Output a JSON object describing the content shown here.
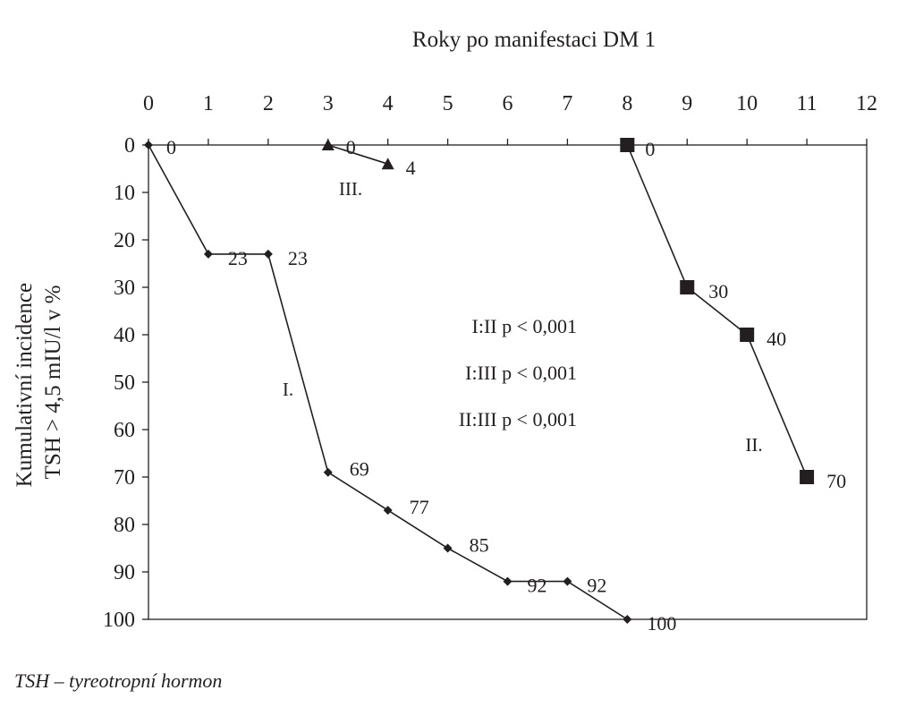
{
  "footnote": "TSH – tyreotropní hormon",
  "chart_data": {
    "type": "line",
    "xlabel": "Roky po manifestaci DM 1",
    "ylabel_lines": [
      "Kumulativní incidence",
      "TSH > 4,5 mIU/l v %"
    ],
    "xlim": [
      0,
      12
    ],
    "ylim": [
      0,
      100
    ],
    "y_inverted": true,
    "x_axis_position": "top",
    "grid": false,
    "x_ticks": [
      "0",
      "1",
      "2",
      "3",
      "4",
      "5",
      "6",
      "7",
      "8",
      "9",
      "10",
      "11",
      "12"
    ],
    "y_ticks": [
      "0",
      "10",
      "20",
      "30",
      "40",
      "50",
      "60",
      "70",
      "80",
      "90",
      "100"
    ],
    "annotations": [
      "I:II p < 0,001",
      "I:III p < 0,001",
      "II:III p < 0,001"
    ],
    "series": [
      {
        "name": "I.",
        "marker": "diamond",
        "x": [
          0,
          1,
          2,
          3,
          4,
          5,
          6,
          7,
          8
        ],
        "y": [
          0,
          23,
          23,
          69,
          77,
          85,
          92,
          92,
          100
        ],
        "labels": [
          "0",
          "23",
          "23",
          "69",
          "77",
          "85",
          "92",
          "92",
          "100"
        ]
      },
      {
        "name": "II.",
        "marker": "square",
        "x": [
          8,
          9,
          10,
          11
        ],
        "y": [
          0,
          30,
          40,
          70
        ],
        "labels": [
          "0",
          "30",
          "40",
          "70"
        ]
      },
      {
        "name": "III.",
        "marker": "triangle",
        "x": [
          3,
          4
        ],
        "y": [
          0,
          4
        ],
        "labels": [
          "0",
          "4"
        ]
      }
    ]
  }
}
